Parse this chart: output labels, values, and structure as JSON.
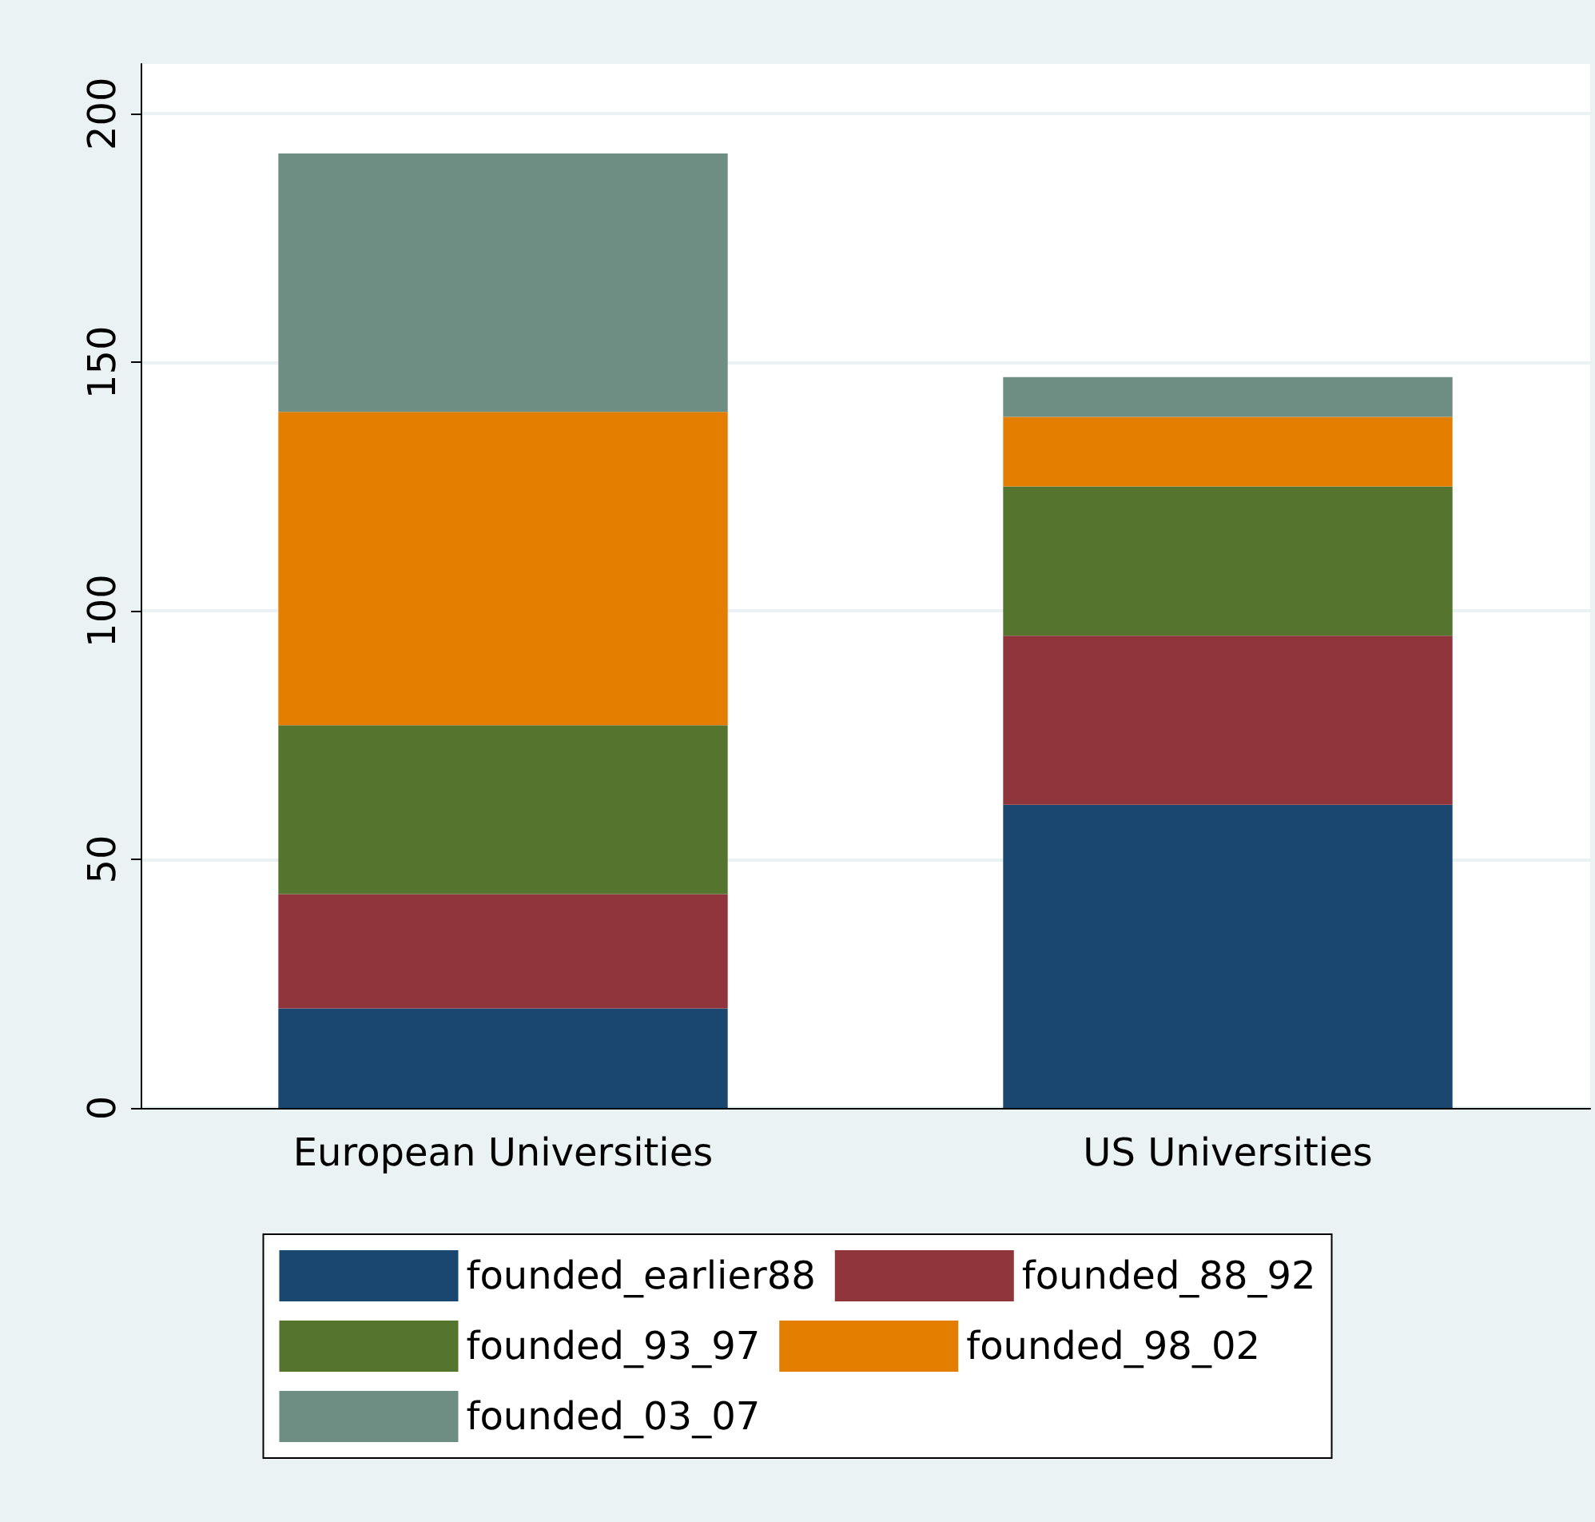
{
  "chart_data": {
    "type": "bar",
    "stacked": true,
    "categories": [
      "European Universities",
      "US Universities"
    ],
    "series": [
      {
        "name": "founded_earlier88",
        "color": "#1a476f",
        "values": [
          20,
          61
        ]
      },
      {
        "name": "founded_88_92",
        "color": "#90353b",
        "values": [
          23,
          34
        ]
      },
      {
        "name": "founded_93_97",
        "color": "#55752f",
        "values": [
          34,
          30
        ]
      },
      {
        "name": "founded_98_02",
        "color": "#e37e00",
        "values": [
          63,
          14
        ]
      },
      {
        "name": "founded_03_07",
        "color": "#6e8e84",
        "values": [
          52,
          8
        ]
      }
    ],
    "ylim": [
      0,
      210
    ],
    "yticks": [
      0,
      50,
      100,
      150,
      200
    ],
    "grid": "y",
    "legend": "bottom"
  }
}
